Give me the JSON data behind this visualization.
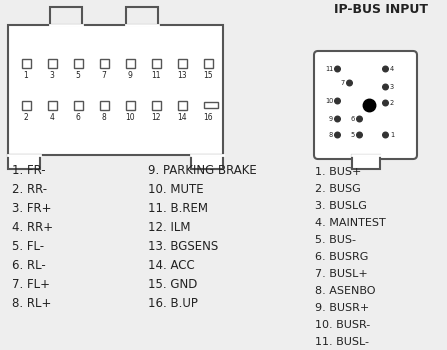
{
  "bg_color": "#eeeeee",
  "text_color": "#222222",
  "connector_color": "#555555",
  "title": "IP-BUS INPUT",
  "left_labels": [
    "1. FR-",
    "2. RR-",
    "3. FR+",
    "4. RR+",
    "5. FL-",
    "6. RL-",
    "7. FL+",
    "8. RL+"
  ],
  "right_labels": [
    "9. PARKING BRAKE",
    "10. MUTE",
    "11. B.REM",
    "12. ILM",
    "13. BGSENS",
    "14. ACC",
    "15. GND",
    "16. B.UP"
  ],
  "bus_labels": [
    "1. BUS+",
    "2. BUSG",
    "3. BUSLG",
    "4. MAINTEST",
    "5. BUS-",
    "6. BUSRG",
    "7. BUSL+",
    "8. ASENBO",
    "9. BUSR+",
    "10. BUSR-",
    "11. BUSL-"
  ],
  "pin_positions_top": [
    1,
    3,
    5,
    7,
    9,
    11,
    13,
    15
  ],
  "pin_positions_bot": [
    2,
    4,
    6,
    8,
    10,
    12,
    14,
    16
  ]
}
